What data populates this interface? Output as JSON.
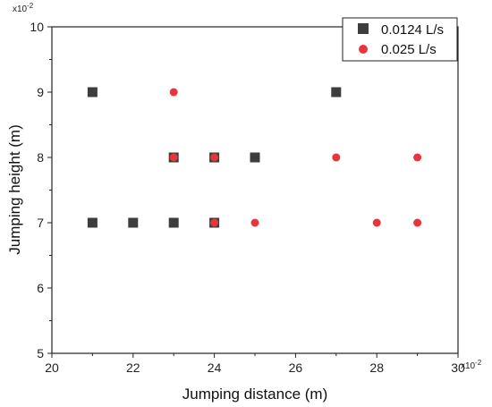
{
  "chart_data": {
    "type": "scatter",
    "xlabel": "Jumping distance (m)",
    "ylabel": "Jumping height (m)",
    "x_multiplier_label": "x10-2",
    "y_multiplier_label": "x10-2",
    "xlim": [
      20,
      30
    ],
    "ylim": [
      5,
      10
    ],
    "x_ticks": [
      "20",
      "22",
      "24",
      "26",
      "28",
      "30"
    ],
    "y_ticks": [
      "5",
      "6",
      "7",
      "8",
      "9",
      "10"
    ],
    "grid": false,
    "legend_position": "top-right",
    "series": [
      {
        "name": "0.0124 L/s",
        "marker": "square",
        "color": "#3d3d3d",
        "points": [
          [
            21,
            9
          ],
          [
            21,
            7
          ],
          [
            22,
            7
          ],
          [
            23,
            8
          ],
          [
            23,
            7
          ],
          [
            24,
            8
          ],
          [
            24,
            7
          ],
          [
            25,
            8
          ],
          [
            27,
            9
          ]
        ]
      },
      {
        "name": "0.025 L/s",
        "marker": "circle",
        "color": "#e8353b",
        "points": [
          [
            23,
            9
          ],
          [
            23,
            8
          ],
          [
            24,
            8
          ],
          [
            24,
            7
          ],
          [
            25,
            7
          ],
          [
            27,
            8
          ],
          [
            28,
            7
          ],
          [
            29,
            8
          ],
          [
            29,
            7
          ]
        ]
      }
    ]
  }
}
